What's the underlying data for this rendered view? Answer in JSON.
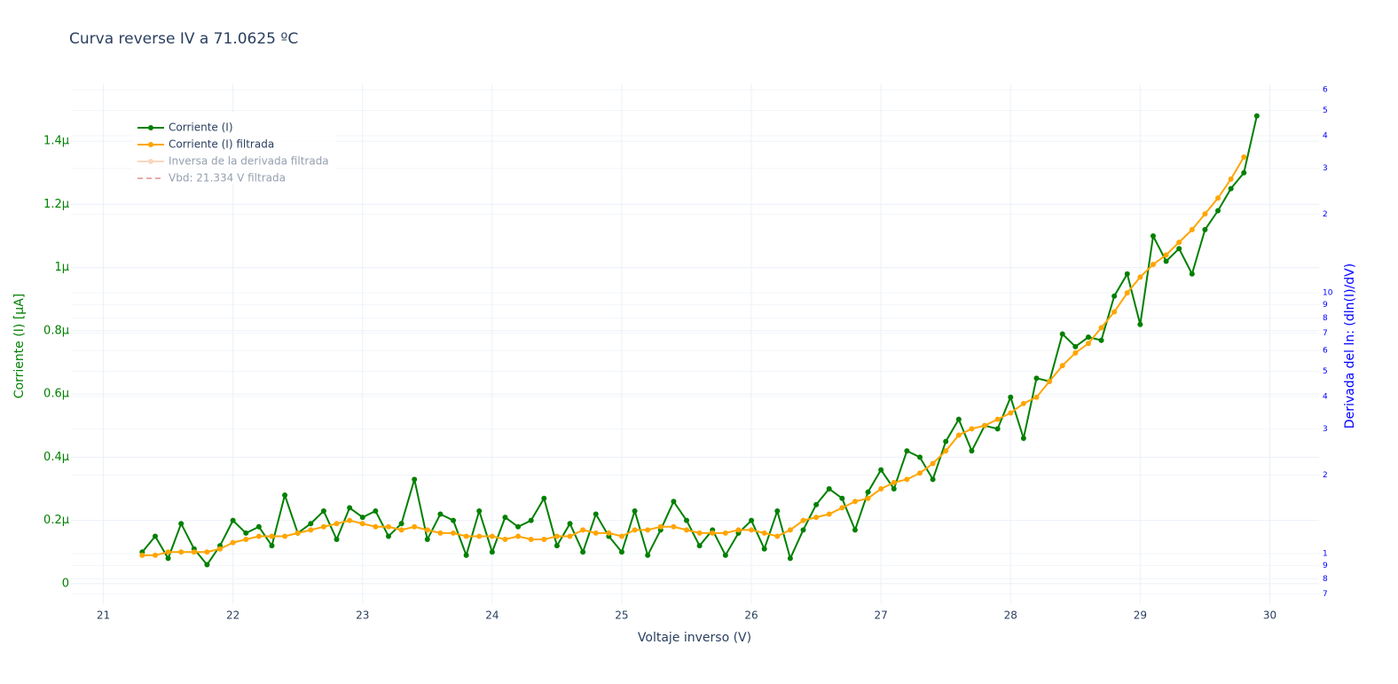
{
  "chart_data": {
    "type": "line",
    "title": "Curva reverse IV a 71.0625 ºC",
    "xlabel": "Voltaje inverso (V)",
    "ylabel": "Corriente (I) [µA]",
    "y2label": "Derivada del ln: (dln(I)/dV)",
    "x": [
      21.3,
      21.4,
      21.5,
      21.6,
      21.7,
      21.8,
      21.9,
      22.0,
      22.1,
      22.2,
      22.3,
      22.4,
      22.5,
      22.6,
      22.7,
      22.8,
      22.9,
      23.0,
      23.1,
      23.2,
      23.3,
      23.4,
      23.5,
      23.6,
      23.7,
      23.8,
      23.9,
      24.0,
      24.1,
      24.2,
      24.3,
      24.4,
      24.5,
      24.6,
      24.7,
      24.8,
      24.9,
      25.0,
      25.1,
      25.2,
      25.3,
      25.4,
      25.5,
      25.6,
      25.7,
      25.8,
      25.9,
      26.0,
      26.1,
      26.2,
      26.3,
      26.4,
      26.5,
      26.6,
      26.7,
      26.8,
      26.9,
      27.0,
      27.1,
      27.2,
      27.3,
      27.4,
      27.5,
      27.6,
      27.7,
      27.8,
      27.9,
      28.0,
      28.1,
      28.2,
      28.3,
      28.4,
      28.5,
      28.6,
      28.7,
      28.8,
      28.9,
      29.0,
      29.1,
      29.2,
      29.3,
      29.4,
      29.5,
      29.6,
      29.7,
      29.8,
      29.9
    ],
    "series": [
      {
        "name": "Corriente (I)",
        "color": "#008000",
        "values": [
          0.1,
          0.15,
          0.08,
          0.19,
          0.11,
          0.06,
          0.12,
          0.2,
          0.16,
          0.18,
          0.12,
          0.28,
          0.16,
          0.19,
          0.23,
          0.14,
          0.24,
          0.21,
          0.23,
          0.15,
          0.19,
          0.33,
          0.14,
          0.22,
          0.2,
          0.09,
          0.23,
          0.1,
          0.21,
          0.18,
          0.2,
          0.27,
          0.12,
          0.19,
          0.1,
          0.22,
          0.15,
          0.1,
          0.23,
          0.09,
          0.17,
          0.26,
          0.2,
          0.12,
          0.17,
          0.09,
          0.16,
          0.2,
          0.11,
          0.23,
          0.08,
          0.17,
          0.25,
          0.3,
          0.27,
          0.17,
          0.29,
          0.36,
          0.3,
          0.42,
          0.4,
          0.33,
          0.45,
          0.52,
          0.42,
          0.5,
          0.49,
          0.59,
          0.46,
          0.65,
          0.64,
          0.79,
          0.75,
          0.78,
          0.77,
          0.91,
          0.98,
          0.82,
          1.1,
          1.02,
          1.06,
          0.98,
          1.12,
          1.18,
          1.25,
          1.3,
          1.48
        ]
      },
      {
        "name": "Corriente (I) filtrada",
        "color": "#ffa500",
        "values": [
          0.09,
          0.09,
          0.1,
          0.1,
          0.1,
          0.1,
          0.11,
          0.13,
          0.14,
          0.15,
          0.15,
          0.15,
          0.16,
          0.17,
          0.18,
          0.19,
          0.2,
          0.19,
          0.18,
          0.18,
          0.17,
          0.18,
          0.17,
          0.16,
          0.16,
          0.15,
          0.15,
          0.15,
          0.14,
          0.15,
          0.14,
          0.14,
          0.15,
          0.15,
          0.17,
          0.16,
          0.16,
          0.15,
          0.17,
          0.17,
          0.18,
          0.18,
          0.17,
          0.16,
          0.16,
          0.16,
          0.17,
          0.17,
          0.16,
          0.15,
          0.17,
          0.2,
          0.21,
          0.22,
          0.24,
          0.26,
          0.27,
          0.3,
          0.32,
          0.33,
          0.35,
          0.38,
          0.42,
          0.47,
          0.49,
          0.5,
          0.52,
          0.54,
          0.57,
          0.59,
          0.64,
          0.69,
          0.73,
          0.76,
          0.81,
          0.86,
          0.92,
          0.97,
          1.01,
          1.04,
          1.08,
          1.12,
          1.17,
          1.22,
          1.28,
          1.35,
          null
        ]
      },
      {
        "name": "Inversa de la derivada filtrada",
        "color": "#f4b183",
        "axis": "y2",
        "hidden": true
      },
      {
        "name": "Vbd: 21.334 V filtrada",
        "color": "#cd5c5c",
        "dash": true,
        "hidden": true
      }
    ],
    "xlim": [
      20.75,
      30.38
    ],
    "xticks": [
      21,
      22,
      23,
      24,
      25,
      26,
      27,
      28,
      29,
      30
    ],
    "ylim": [
      -0.062,
      1.58
    ],
    "yticks": [
      {
        "value": 0,
        "label": "0"
      },
      {
        "value": 0.2,
        "label": "0.2µ"
      },
      {
        "value": 0.4,
        "label": "0.4µ"
      },
      {
        "value": 0.6,
        "label": "0.6µ"
      },
      {
        "value": 0.8,
        "label": "0.8µ"
      },
      {
        "value": 1,
        "label": "1µ"
      },
      {
        "value": 1.2,
        "label": "1.2µ"
      },
      {
        "value": 1.4,
        "label": "1.4µ"
      }
    ],
    "y2lim": [
      0.645,
      63
    ],
    "y2log": true,
    "y2ticks": [
      {
        "value": 0.7,
        "label": "7"
      },
      {
        "value": 0.8,
        "label": "8"
      },
      {
        "value": 0.9,
        "label": "9"
      },
      {
        "value": 1,
        "label": "1"
      },
      {
        "value": 2,
        "label": "2"
      },
      {
        "value": 3,
        "label": "3"
      },
      {
        "value": 4,
        "label": "4"
      },
      {
        "value": 5,
        "label": "5"
      },
      {
        "value": 6,
        "label": "6"
      },
      {
        "value": 7,
        "label": "7"
      },
      {
        "value": 8,
        "label": "8"
      },
      {
        "value": 9,
        "label": "9"
      },
      10,
      {
        "value": 20,
        "label": "2"
      },
      {
        "value": 30,
        "label": "3"
      },
      {
        "value": 40,
        "label": "4"
      },
      {
        "value": 50,
        "label": "5"
      },
      {
        "value": 60,
        "label": "6"
      }
    ],
    "grid": true,
    "legend": "top-left"
  }
}
